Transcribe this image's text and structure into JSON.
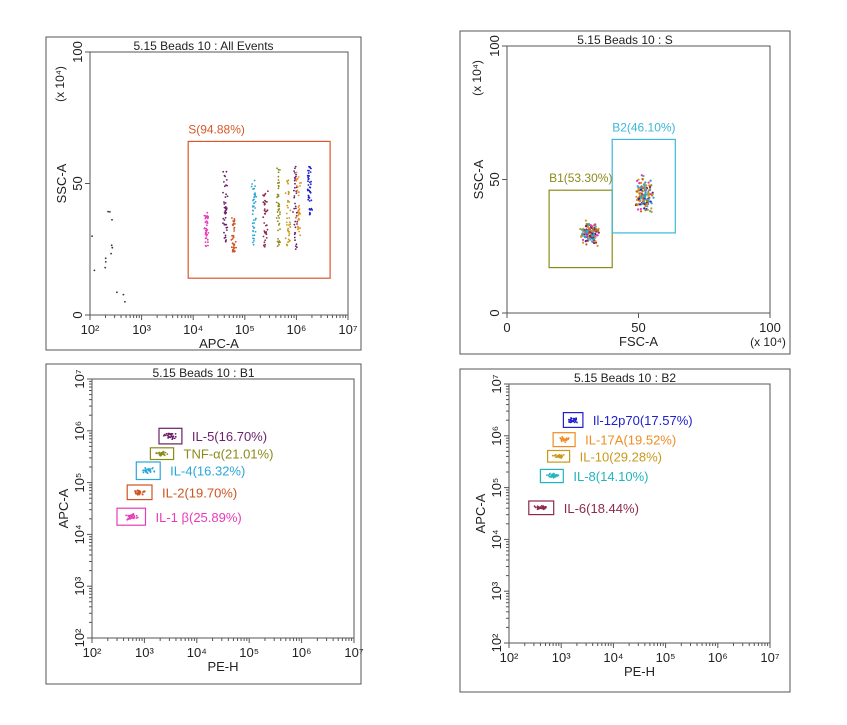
{
  "colors": {
    "frame": "#555555",
    "text": "#222222",
    "s_gate": "#d9582b",
    "b1_gate": "#8b8b1a",
    "b2_gate": "#3cb8d8",
    "il5": "#6a1f6a",
    "tnf": "#8b8b1a",
    "il4": "#2aa7d9",
    "il2": "#d0531f",
    "il1b": "#e83bb8",
    "il12": "#2020d0",
    "il17a": "#f08c1f",
    "il10": "#c89a1a",
    "il8": "#1fb5c0",
    "il6": "#8c2a4a",
    "dots": "#333333"
  },
  "chart_data": [
    {
      "type": "scatter",
      "title": "5.15 Beads 10 : All Events",
      "xlabel": "APC-A",
      "ylabel": "SSC-A",
      "y_multiplier": "(x 10⁴)",
      "xscale": "log",
      "xlim": [
        100,
        10000000
      ],
      "ylim": [
        0,
        100
      ],
      "x_ticks": [
        "10²",
        "10³",
        "10⁴",
        "10⁵",
        "10⁶",
        "10⁷"
      ],
      "y_ticks": [
        "0",
        "50",
        "100"
      ],
      "gates": [
        {
          "name": "S(94.88%)",
          "x": [
            8000,
            4500000
          ],
          "y": [
            14,
            66
          ],
          "color": "#d9582b",
          "label_x": 8000,
          "label_y": 69
        }
      ],
      "series": [
        {
          "x_center": 230,
          "y_range": [
            0,
            45
          ],
          "color": "#333333",
          "n": 14
        },
        {
          "x_center": 18000,
          "y_range": [
            26,
            39
          ],
          "color": "#e83bb8",
          "n": 40
        },
        {
          "x_center": 42000,
          "y_range": [
            27,
            55
          ],
          "color": "#6a1f6a",
          "n": 45
        },
        {
          "x_center": 60000,
          "y_range": [
            24,
            37
          ],
          "color": "#d0531f",
          "n": 40
        },
        {
          "x_center": 150000,
          "y_range": [
            26,
            52
          ],
          "color": "#2aa7d9",
          "n": 45
        },
        {
          "x_center": 250000,
          "y_range": [
            25,
            48
          ],
          "color": "#8c2a4a",
          "n": 40
        },
        {
          "x_center": 450000,
          "y_range": [
            25,
            57
          ],
          "color": "#8b8b1a",
          "n": 45
        },
        {
          "x_center": 700000,
          "y_range": [
            26,
            52
          ],
          "color": "#c89a1a",
          "n": 40
        },
        {
          "x_center": 950000,
          "y_range": [
            25,
            57
          ],
          "color": "#6a1f6a",
          "n": 40
        },
        {
          "x_center": 1100000,
          "y_range": [
            30,
            55
          ],
          "color": "#f08c1f",
          "n": 40
        },
        {
          "x_center": 1800000,
          "y_range": [
            38,
            57
          ],
          "color": "#2020d0",
          "n": 45
        }
      ]
    },
    {
      "type": "scatter",
      "title": "5.15 Beads 10 : S",
      "xlabel": "FSC-A",
      "ylabel": "SSC-A",
      "x_multiplier": "(x 10⁴)",
      "y_multiplier": "(x 10⁴)",
      "xscale": "linear",
      "xlim": [
        0,
        100
      ],
      "ylim": [
        0,
        100
      ],
      "x_ticks": [
        "0",
        "50",
        "100"
      ],
      "y_ticks": [
        "0",
        "50",
        "100"
      ],
      "gates": [
        {
          "name": "B1(53.30%)",
          "x": [
            16,
            40
          ],
          "y": [
            17,
            46
          ],
          "color": "#8b8b1a",
          "label_x": 16,
          "label_y": 49
        },
        {
          "name": "B2(46.10%)",
          "x": [
            40,
            64
          ],
          "y": [
            30,
            65
          ],
          "color": "#3cb8d8",
          "label_x": 40,
          "label_y": 68
        }
      ],
      "series": [
        {
          "x_center": 31,
          "y_center": 30,
          "x_spread": 5,
          "y_spread": 6,
          "n": 140
        },
        {
          "x_center": 52,
          "y_center": 44,
          "x_spread": 5,
          "y_spread": 9,
          "n": 150
        }
      ]
    },
    {
      "type": "scatter",
      "title": "5.15 Beads 10 : B1",
      "xlabel": "PE-H",
      "ylabel": "APC-A",
      "xscale": "log",
      "yscale": "log",
      "xlim": [
        100,
        10000000
      ],
      "ylim": [
        100,
        10000000
      ],
      "x_ticks": [
        "10²",
        "10³",
        "10⁴",
        "10⁵",
        "10⁶",
        "10⁷"
      ],
      "y_ticks": [
        "10²",
        "10³",
        "10⁴",
        "10⁵",
        "10⁶",
        "10⁷"
      ],
      "gates": [
        {
          "name": "IL-5(16.70%)",
          "x": [
            1900,
            5200
          ],
          "y": [
            560000,
            1120000
          ],
          "color": "#6a1f6a"
        },
        {
          "name": "TNF-α(21.01%)",
          "x": [
            1300,
            3600
          ],
          "y": [
            280000,
            470000
          ],
          "color": "#8b8b1a"
        },
        {
          "name": "IL-4(16.32%)",
          "x": [
            700,
            2000
          ],
          "y": [
            115000,
            250000
          ],
          "color": "#2aa7d9"
        },
        {
          "name": "IL-2(19.70%)",
          "x": [
            470,
            1400
          ],
          "y": [
            47000,
            90000
          ],
          "color": "#d0531f"
        },
        {
          "name": "IL-1 β(25.89%)",
          "x": [
            300,
            1050
          ],
          "y": [
            15000,
            32000
          ],
          "color": "#e83bb8"
        }
      ]
    },
    {
      "type": "scatter",
      "title": "5.15 Beads 10 : B2",
      "xlabel": "PE-H",
      "ylabel": "APC-A",
      "xscale": "log",
      "yscale": "log",
      "xlim": [
        100,
        10000000
      ],
      "ylim": [
        100,
        10000000
      ],
      "x_ticks": [
        "10²",
        "10³",
        "10⁴",
        "10⁵",
        "10⁶",
        "10⁷"
      ],
      "y_ticks": [
        "10²",
        "10³",
        "10⁴",
        "10⁵",
        "10⁶",
        "10⁷"
      ],
      "gates": [
        {
          "name": "Il-12p70(17.57%)",
          "x": [
            1100,
            2600
          ],
          "y": [
            1450000,
            2800000
          ],
          "color": "#2020d0"
        },
        {
          "name": "IL-17A(19.52%)",
          "x": [
            700,
            1850
          ],
          "y": [
            620000,
            1150000
          ],
          "color": "#f08c1f"
        },
        {
          "name": "IL-10(29.28%)",
          "x": [
            550,
            1450
          ],
          "y": [
            310000,
            520000
          ],
          "color": "#c89a1a"
        },
        {
          "name": "IL-8(14.10%)",
          "x": [
            400,
            1100
          ],
          "y": [
            125000,
            225000
          ],
          "color": "#1fb5c0"
        },
        {
          "name": "IL-6(18.44%)",
          "x": [
            240,
            720
          ],
          "y": [
            30000,
            55000
          ],
          "color": "#8c2a4a"
        }
      ]
    }
  ]
}
